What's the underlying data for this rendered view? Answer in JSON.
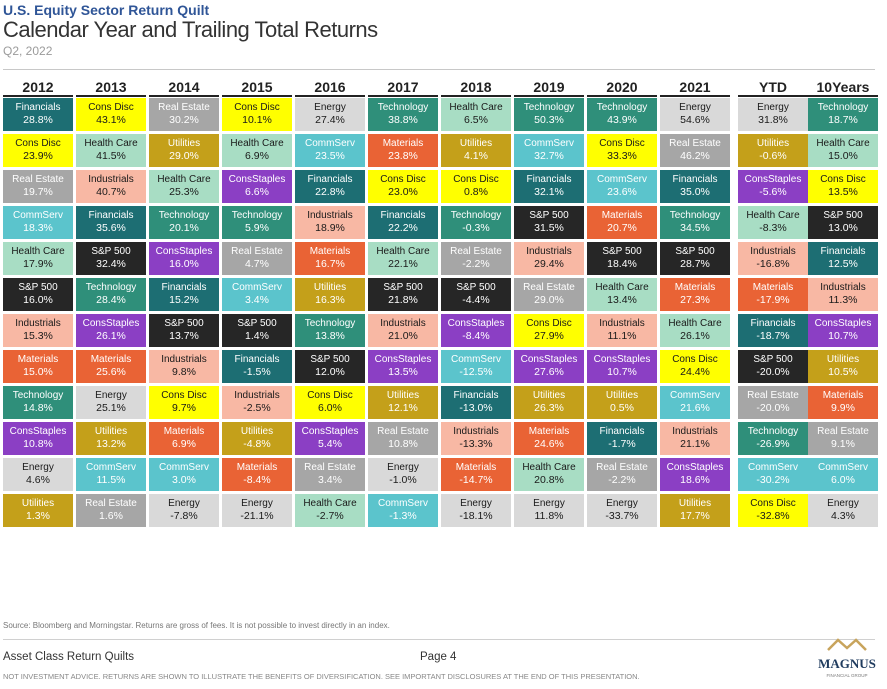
{
  "header": {
    "supertitle": "U.S. Equity Sector Return Quilt",
    "title": "Calendar Year and Trailing Total Returns",
    "subtitle": "Q2, 2022"
  },
  "chart_data": {
    "type": "table",
    "colors": {
      "Financials": "#1d6e73",
      "Cons Disc": "#ffff00",
      "Real Estate": "#a6a6a6",
      "CommServ": "#5bc4cc",
      "Health Care": "#a8ddc4",
      "S&P 500": "#262626",
      "Industrials": "#f8b8a4",
      "Materials": "#e96335",
      "Technology": "#2f8f7a",
      "ConsStaples": "#8b3fc4",
      "Energy": "#d9d9d9",
      "Utilities": "#c4a01a"
    },
    "text_colors": {
      "Financials": "#ffffff",
      "Cons Disc": "#1a1a1a",
      "Real Estate": "#ffffff",
      "CommServ": "#ffffff",
      "Health Care": "#1a1a1a",
      "S&P 500": "#ffffff",
      "Industrials": "#1a1a1a",
      "Materials": "#ffffff",
      "Technology": "#ffffff",
      "ConsStaples": "#ffffff",
      "Energy": "#1a1a1a",
      "Utilities": "#ffffff"
    },
    "columns": [
      {
        "label": "2012",
        "cells": [
          {
            "sector": "Financials",
            "value": "28.8%"
          },
          {
            "sector": "Cons Disc",
            "value": "23.9%"
          },
          {
            "sector": "Real Estate",
            "value": "19.7%"
          },
          {
            "sector": "CommServ",
            "value": "18.3%"
          },
          {
            "sector": "Health Care",
            "value": "17.9%"
          },
          {
            "sector": "S&P 500",
            "value": "16.0%"
          },
          {
            "sector": "Industrials",
            "value": "15.3%"
          },
          {
            "sector": "Materials",
            "value": "15.0%"
          },
          {
            "sector": "Technology",
            "value": "14.8%"
          },
          {
            "sector": "ConsStaples",
            "value": "10.8%"
          },
          {
            "sector": "Energy",
            "value": "4.6%"
          },
          {
            "sector": "Utilities",
            "value": "1.3%"
          }
        ]
      },
      {
        "label": "2013",
        "cells": [
          {
            "sector": "Cons Disc",
            "value": "43.1%"
          },
          {
            "sector": "Health Care",
            "value": "41.5%"
          },
          {
            "sector": "Industrials",
            "value": "40.7%"
          },
          {
            "sector": "Financials",
            "value": "35.6%"
          },
          {
            "sector": "S&P 500",
            "value": "32.4%"
          },
          {
            "sector": "Technology",
            "value": "28.4%"
          },
          {
            "sector": "ConsStaples",
            "value": "26.1%"
          },
          {
            "sector": "Materials",
            "value": "25.6%"
          },
          {
            "sector": "Energy",
            "value": "25.1%"
          },
          {
            "sector": "Utilities",
            "value": "13.2%"
          },
          {
            "sector": "CommServ",
            "value": "11.5%"
          },
          {
            "sector": "Real Estate",
            "value": "1.6%"
          }
        ]
      },
      {
        "label": "2014",
        "cells": [
          {
            "sector": "Real Estate",
            "value": "30.2%"
          },
          {
            "sector": "Utilities",
            "value": "29.0%"
          },
          {
            "sector": "Health Care",
            "value": "25.3%"
          },
          {
            "sector": "Technology",
            "value": "20.1%"
          },
          {
            "sector": "ConsStaples",
            "value": "16.0%"
          },
          {
            "sector": "Financials",
            "value": "15.2%"
          },
          {
            "sector": "S&P 500",
            "value": "13.7%"
          },
          {
            "sector": "Industrials",
            "value": "9.8%"
          },
          {
            "sector": "Cons Disc",
            "value": "9.7%"
          },
          {
            "sector": "Materials",
            "value": "6.9%"
          },
          {
            "sector": "CommServ",
            "value": "3.0%"
          },
          {
            "sector": "Energy",
            "value": "-7.8%"
          }
        ]
      },
      {
        "label": "2015",
        "cells": [
          {
            "sector": "Cons Disc",
            "value": "10.1%"
          },
          {
            "sector": "Health Care",
            "value": "6.9%"
          },
          {
            "sector": "ConsStaples",
            "value": "6.6%"
          },
          {
            "sector": "Technology",
            "value": "5.9%"
          },
          {
            "sector": "Real Estate",
            "value": "4.7%"
          },
          {
            "sector": "CommServ",
            "value": "3.4%"
          },
          {
            "sector": "S&P 500",
            "value": "1.4%"
          },
          {
            "sector": "Financials",
            "value": "-1.5%"
          },
          {
            "sector": "Industrials",
            "value": "-2.5%"
          },
          {
            "sector": "Utilities",
            "value": "-4.8%"
          },
          {
            "sector": "Materials",
            "value": "-8.4%"
          },
          {
            "sector": "Energy",
            "value": "-21.1%"
          }
        ]
      },
      {
        "label": "2016",
        "cells": [
          {
            "sector": "Energy",
            "value": "27.4%"
          },
          {
            "sector": "CommServ",
            "value": "23.5%"
          },
          {
            "sector": "Financials",
            "value": "22.8%"
          },
          {
            "sector": "Industrials",
            "value": "18.9%"
          },
          {
            "sector": "Materials",
            "value": "16.7%"
          },
          {
            "sector": "Utilities",
            "value": "16.3%"
          },
          {
            "sector": "Technology",
            "value": "13.8%"
          },
          {
            "sector": "S&P 500",
            "value": "12.0%"
          },
          {
            "sector": "Cons Disc",
            "value": "6.0%"
          },
          {
            "sector": "ConsStaples",
            "value": "5.4%"
          },
          {
            "sector": "Real Estate",
            "value": "3.4%"
          },
          {
            "sector": "Health Care",
            "value": "-2.7%"
          }
        ]
      },
      {
        "label": "2017",
        "cells": [
          {
            "sector": "Technology",
            "value": "38.8%"
          },
          {
            "sector": "Materials",
            "value": "23.8%"
          },
          {
            "sector": "Cons Disc",
            "value": "23.0%"
          },
          {
            "sector": "Financials",
            "value": "22.2%"
          },
          {
            "sector": "Health Care",
            "value": "22.1%"
          },
          {
            "sector": "S&P 500",
            "value": "21.8%"
          },
          {
            "sector": "Industrials",
            "value": "21.0%"
          },
          {
            "sector": "ConsStaples",
            "value": "13.5%"
          },
          {
            "sector": "Utilities",
            "value": "12.1%"
          },
          {
            "sector": "Real Estate",
            "value": "10.8%"
          },
          {
            "sector": "Energy",
            "value": "-1.0%"
          },
          {
            "sector": "CommServ",
            "value": "-1.3%"
          }
        ]
      },
      {
        "label": "2018",
        "cells": [
          {
            "sector": "Health Care",
            "value": "6.5%"
          },
          {
            "sector": "Utilities",
            "value": "4.1%"
          },
          {
            "sector": "Cons Disc",
            "value": "0.8%"
          },
          {
            "sector": "Technology",
            "value": "-0.3%"
          },
          {
            "sector": "Real Estate",
            "value": "-2.2%"
          },
          {
            "sector": "S&P 500",
            "value": "-4.4%"
          },
          {
            "sector": "ConsStaples",
            "value": "-8.4%"
          },
          {
            "sector": "CommServ",
            "value": "-12.5%"
          },
          {
            "sector": "Financials",
            "value": "-13.0%"
          },
          {
            "sector": "Industrials",
            "value": "-13.3%"
          },
          {
            "sector": "Materials",
            "value": "-14.7%"
          },
          {
            "sector": "Energy",
            "value": "-18.1%"
          }
        ]
      },
      {
        "label": "2019",
        "cells": [
          {
            "sector": "Technology",
            "value": "50.3%"
          },
          {
            "sector": "CommServ",
            "value": "32.7%"
          },
          {
            "sector": "Financials",
            "value": "32.1%"
          },
          {
            "sector": "S&P 500",
            "value": "31.5%"
          },
          {
            "sector": "Industrials",
            "value": "29.4%"
          },
          {
            "sector": "Real Estate",
            "value": "29.0%"
          },
          {
            "sector": "Cons Disc",
            "value": "27.9%"
          },
          {
            "sector": "ConsStaples",
            "value": "27.6%"
          },
          {
            "sector": "Utilities",
            "value": "26.3%"
          },
          {
            "sector": "Materials",
            "value": "24.6%"
          },
          {
            "sector": "Health Care",
            "value": "20.8%"
          },
          {
            "sector": "Energy",
            "value": "11.8%"
          }
        ]
      },
      {
        "label": "2020",
        "cells": [
          {
            "sector": "Technology",
            "value": "43.9%"
          },
          {
            "sector": "Cons Disc",
            "value": "33.3%"
          },
          {
            "sector": "CommServ",
            "value": "23.6%"
          },
          {
            "sector": "Materials",
            "value": "20.7%"
          },
          {
            "sector": "S&P 500",
            "value": "18.4%"
          },
          {
            "sector": "Health Care",
            "value": "13.4%"
          },
          {
            "sector": "Industrials",
            "value": "11.1%"
          },
          {
            "sector": "ConsStaples",
            "value": "10.7%"
          },
          {
            "sector": "Utilities",
            "value": "0.5%"
          },
          {
            "sector": "Financials",
            "value": "-1.7%"
          },
          {
            "sector": "Real Estate",
            "value": "-2.2%"
          },
          {
            "sector": "Energy",
            "value": "-33.7%"
          }
        ]
      },
      {
        "label": "2021",
        "cells": [
          {
            "sector": "Energy",
            "value": "54.6%"
          },
          {
            "sector": "Real Estate",
            "value": "46.2%"
          },
          {
            "sector": "Financials",
            "value": "35.0%"
          },
          {
            "sector": "Technology",
            "value": "34.5%"
          },
          {
            "sector": "S&P 500",
            "value": "28.7%"
          },
          {
            "sector": "Materials",
            "value": "27.3%"
          },
          {
            "sector": "Health Care",
            "value": "26.1%"
          },
          {
            "sector": "Cons Disc",
            "value": "24.4%"
          },
          {
            "sector": "CommServ",
            "value": "21.6%"
          },
          {
            "sector": "Industrials",
            "value": "21.1%"
          },
          {
            "sector": "ConsStaples",
            "value": "18.6%"
          },
          {
            "sector": "Utilities",
            "value": "17.7%"
          }
        ]
      },
      {
        "label": "YTD",
        "cells": [
          {
            "sector": "Energy",
            "value": "31.8%"
          },
          {
            "sector": "Utilities",
            "value": "-0.6%"
          },
          {
            "sector": "ConsStaples",
            "value": "-5.6%"
          },
          {
            "sector": "Health Care",
            "value": "-8.3%"
          },
          {
            "sector": "Industrials",
            "value": "-16.8%"
          },
          {
            "sector": "Materials",
            "value": "-17.9%"
          },
          {
            "sector": "Financials",
            "value": "-18.7%"
          },
          {
            "sector": "S&P 500",
            "value": "-20.0%"
          },
          {
            "sector": "Real Estate",
            "value": "-20.0%"
          },
          {
            "sector": "Technology",
            "value": "-26.9%"
          },
          {
            "sector": "CommServ",
            "value": "-30.2%"
          },
          {
            "sector": "Cons Disc",
            "value": "-32.8%"
          }
        ]
      },
      {
        "label": "10Years",
        "cells": [
          {
            "sector": "Technology",
            "value": "18.7%"
          },
          {
            "sector": "Health Care",
            "value": "15.0%"
          },
          {
            "sector": "Cons Disc",
            "value": "13.5%"
          },
          {
            "sector": "S&P 500",
            "value": "13.0%"
          },
          {
            "sector": "Financials",
            "value": "12.5%"
          },
          {
            "sector": "Industrials",
            "value": "11.3%"
          },
          {
            "sector": "ConsStaples",
            "value": "10.7%"
          },
          {
            "sector": "Utilities",
            "value": "10.5%"
          },
          {
            "sector": "Materials",
            "value": "9.9%"
          },
          {
            "sector": "Real Estate",
            "value": "9.1%"
          },
          {
            "sector": "CommServ",
            "value": "6.0%"
          },
          {
            "sector": "Energy",
            "value": "4.3%"
          }
        ]
      }
    ]
  },
  "footer": {
    "source": "Source: Bloomberg and Morningstar. Returns are gross of fees. It is not possible to invest directly in an index.",
    "left_label": "Asset Class Return Quilts",
    "page_label": "Page 4",
    "disclaimer": "NOT INVESTMENT ADVICE. RETURNS ARE SHOWN TO ILLUSTRATE THE BENEFITS OF DIVERSIFICATION. SEE IMPORTANT DISCLOSURES AT THE END OF THIS PRESENTATION.",
    "logo_name": "MAGNUS",
    "logo_sub": "FINANCIAL GROUP"
  }
}
